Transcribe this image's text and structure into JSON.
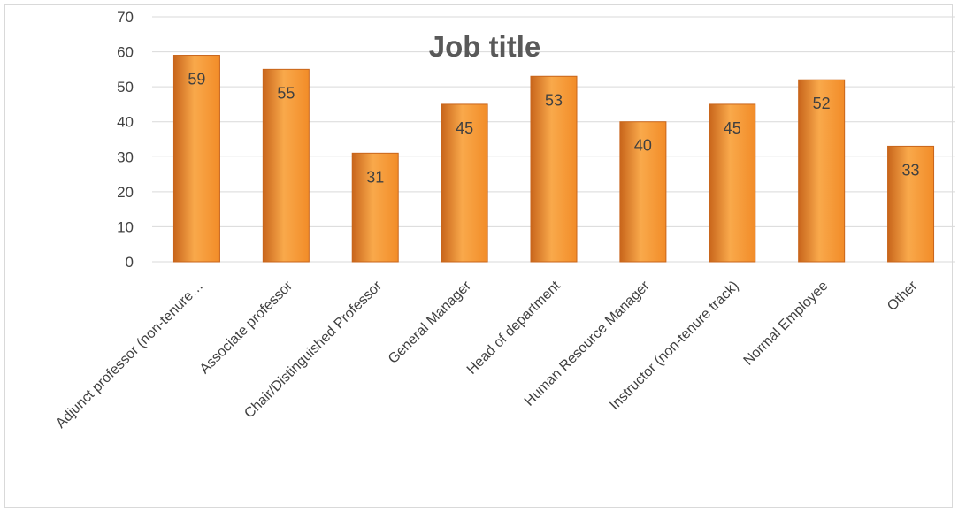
{
  "chart_data": {
    "type": "bar",
    "title": "Job title",
    "categories": [
      "Adjunct professor (non-tenure…",
      "Associate professor",
      "Chair/Distinguished Professor",
      "General Manager",
      "Head of department",
      "Human Resource Manager",
      "Instructor (non-tenure track)",
      "Normal Employee",
      "Other"
    ],
    "values": [
      59,
      55,
      31,
      45,
      53,
      40,
      45,
      52,
      33
    ],
    "yticks": [
      "0",
      "10",
      "20",
      "30",
      "40",
      "50",
      "60",
      "70"
    ],
    "ylim": [
      0,
      70
    ],
    "grid": true,
    "legend": "none",
    "bar_color": "#f28c28",
    "bar_color_light": "#f9a94b",
    "bar_color_dark": "#c8651b",
    "grid_color": "#d9d9d9"
  }
}
